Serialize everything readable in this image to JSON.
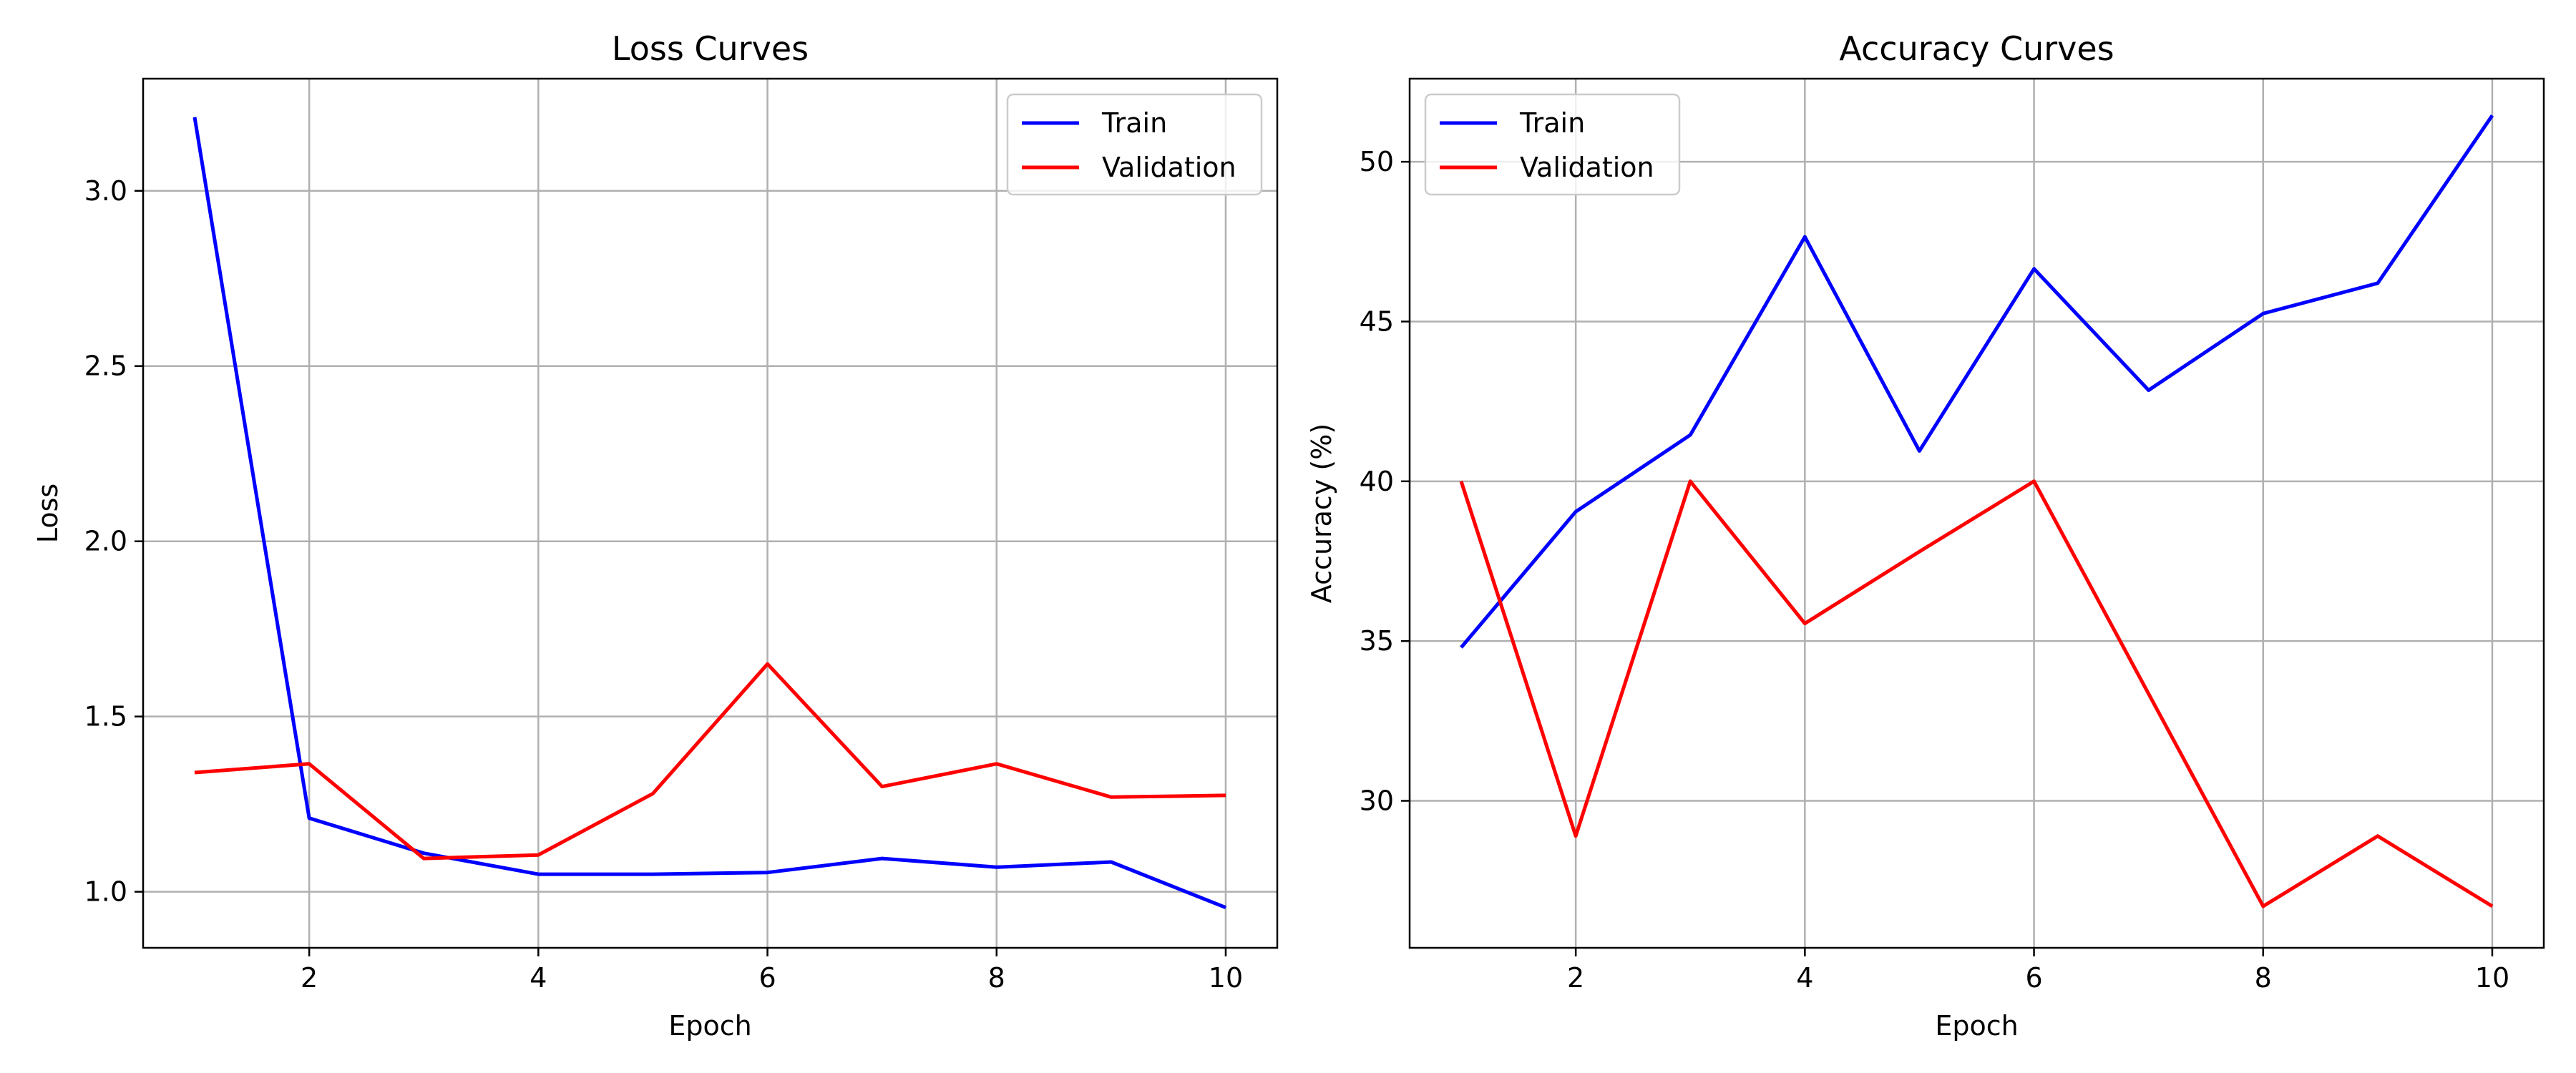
{
  "chart_data": [
    {
      "type": "line",
      "title": "Loss Curves",
      "xlabel": "Epoch",
      "ylabel": "Loss",
      "x": [
        1,
        2,
        3,
        4,
        5,
        6,
        7,
        8,
        9,
        10
      ],
      "xticks": [
        2,
        4,
        6,
        8,
        10
      ],
      "yticks": [
        1.0,
        1.5,
        2.0,
        2.5,
        3.0
      ],
      "ytick_labels": [
        "1.0",
        "1.5",
        "2.0",
        "2.5",
        "3.0"
      ],
      "xlim": [
        0.55,
        10.45
      ],
      "ylim": [
        0.84,
        3.32
      ],
      "grid": true,
      "legend_position": "upper right",
      "series": [
        {
          "name": "Train",
          "color": "#0000ff",
          "values": [
            3.21,
            1.21,
            1.11,
            1.05,
            1.05,
            1.055,
            1.095,
            1.07,
            1.085,
            0.955
          ]
        },
        {
          "name": "Validation",
          "color": "#ff0000",
          "values": [
            1.34,
            1.365,
            1.095,
            1.105,
            1.28,
            1.65,
            1.3,
            1.365,
            1.27,
            1.275
          ]
        }
      ]
    },
    {
      "type": "line",
      "title": "Accuracy Curves",
      "xlabel": "Epoch",
      "ylabel": "Accuracy (%)",
      "x": [
        1,
        2,
        3,
        4,
        5,
        6,
        7,
        8,
        9,
        10
      ],
      "xticks": [
        2,
        4,
        6,
        8,
        10
      ],
      "yticks": [
        30,
        35,
        40,
        45,
        50
      ],
      "ytick_labels": [
        "30",
        "35",
        "40",
        "45",
        "50"
      ],
      "xlim": [
        0.55,
        10.45
      ],
      "ylim": [
        25.4,
        52.6
      ],
      "grid": true,
      "legend_position": "upper left",
      "series": [
        {
          "name": "Train",
          "color": "#0000ff",
          "values": [
            34.8,
            39.05,
            41.45,
            47.65,
            40.95,
            46.65,
            42.85,
            45.25,
            46.2,
            51.45
          ]
        },
        {
          "name": "Validation",
          "color": "#ff0000",
          "values": [
            40.0,
            28.9,
            40.0,
            35.55,
            37.8,
            40.0,
            33.35,
            26.7,
            28.9,
            26.7
          ]
        }
      ]
    }
  ]
}
